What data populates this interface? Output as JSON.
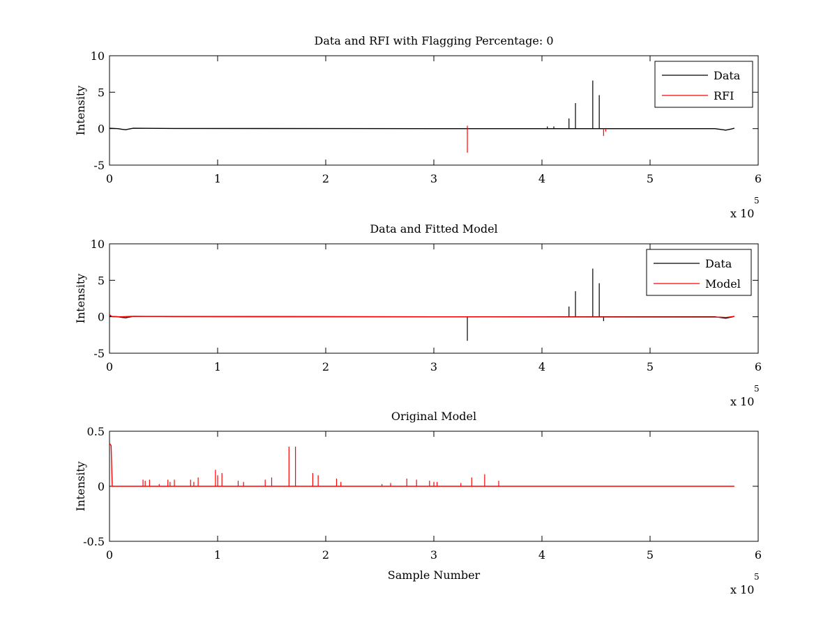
{
  "chart_data": [
    {
      "type": "line",
      "title": "Data and RFI with Flagging Percentage: 0",
      "xlabel": "",
      "ylabel": "Intensity",
      "xlim": [
        0,
        600000
      ],
      "ylim": [
        -5,
        10
      ],
      "xticks": [
        0,
        1,
        2,
        3,
        4,
        5,
        6
      ],
      "yticks": [
        -5,
        0,
        5,
        10
      ],
      "x_multiplier": "x 10",
      "x_multiplier_exp": "5",
      "legend": {
        "position": "top-right",
        "entries": [
          "Data",
          "RFI"
        ]
      },
      "series": [
        {
          "name": "Data",
          "color": "#000000",
          "baseline": [
            [
              0,
              0.05
            ],
            [
              8000,
              0.0
            ],
            [
              12000,
              -0.1
            ],
            [
              15000,
              -0.15
            ],
            [
              18000,
              -0.05
            ],
            [
              22000,
              0.05
            ],
            [
              60000,
              0.03
            ],
            [
              300000,
              0.0
            ],
            [
              560000,
              0.0
            ],
            [
              565000,
              -0.1
            ],
            [
              570000,
              -0.2
            ],
            [
              575000,
              -0.05
            ],
            [
              578000,
              0.05
            ]
          ],
          "spikes": [
            [
              425000,
              1.4
            ],
            [
              431000,
              3.5
            ],
            [
              447000,
              6.6
            ],
            [
              453000,
              4.6
            ],
            [
              405000,
              0.3
            ],
            [
              411000,
              0.3
            ]
          ]
        },
        {
          "name": "RFI",
          "color": "#ff0000",
          "spikes": [
            [
              331000,
              0.4
            ],
            [
              331000,
              -3.3
            ],
            [
              457000,
              -1.0
            ],
            [
              459000,
              -0.4
            ]
          ]
        }
      ]
    },
    {
      "type": "line",
      "title": "Data and Fitted Model",
      "xlabel": "",
      "ylabel": "Intensity",
      "xlim": [
        0,
        600000
      ],
      "ylim": [
        -5,
        10
      ],
      "xticks": [
        0,
        1,
        2,
        3,
        4,
        5,
        6
      ],
      "yticks": [
        -5,
        0,
        5,
        10
      ],
      "x_multiplier": "x 10",
      "x_multiplier_exp": "5",
      "legend": {
        "position": "top-right",
        "entries": [
          "Data",
          "Model"
        ]
      },
      "series": [
        {
          "name": "Data",
          "color": "#000000",
          "baseline": [
            [
              0,
              0.05
            ],
            [
              8000,
              0.0
            ],
            [
              12000,
              -0.1
            ],
            [
              15000,
              -0.15
            ],
            [
              18000,
              -0.05
            ],
            [
              22000,
              0.05
            ],
            [
              60000,
              0.03
            ],
            [
              300000,
              0.0
            ],
            [
              560000,
              0.0
            ],
            [
              565000,
              -0.1
            ],
            [
              570000,
              -0.2
            ],
            [
              575000,
              -0.05
            ],
            [
              578000,
              0.05
            ]
          ],
          "spikes": [
            [
              331000,
              -3.3
            ],
            [
              425000,
              1.4
            ],
            [
              431000,
              3.5
            ],
            [
              447000,
              6.6
            ],
            [
              453000,
              4.6
            ],
            [
              457000,
              -0.6
            ]
          ]
        },
        {
          "name": "Model",
          "color": "#ff0000",
          "baseline": [
            [
              0,
              0.3
            ],
            [
              2000,
              0.05
            ],
            [
              10000,
              0.0
            ],
            [
              20000,
              0.05
            ],
            [
              300000,
              0.0
            ],
            [
              565000,
              -0.05
            ],
            [
              570000,
              -0.1
            ],
            [
              578000,
              0.05
            ]
          ],
          "spikes": []
        }
      ]
    },
    {
      "type": "line",
      "title": "Original Model",
      "xlabel": "Sample Number",
      "ylabel": "Intensity",
      "xlim": [
        0,
        600000
      ],
      "ylim": [
        -0.5,
        0.5
      ],
      "xticks": [
        0,
        1,
        2,
        3,
        4,
        5,
        6
      ],
      "yticks": [
        -0.5,
        0,
        0.5
      ],
      "x_multiplier": "x 10",
      "x_multiplier_exp": "5",
      "legend": null,
      "series": [
        {
          "color": "#ff0000",
          "baseline": [
            [
              0,
              0.39
            ],
            [
              1500,
              0.37
            ],
            [
              2500,
              0.0
            ],
            [
              578000,
              0.0
            ]
          ],
          "spikes": [
            [
              31000,
              0.06
            ],
            [
              33000,
              0.05
            ],
            [
              37000,
              0.06
            ],
            [
              46000,
              0.02
            ],
            [
              54000,
              0.06
            ],
            [
              56000,
              0.04
            ],
            [
              60000,
              0.06
            ],
            [
              75000,
              0.06
            ],
            [
              78000,
              0.04
            ],
            [
              82000,
              0.08
            ],
            [
              98000,
              0.15
            ],
            [
              100000,
              0.1
            ],
            [
              104000,
              0.12
            ],
            [
              119000,
              0.05
            ],
            [
              124000,
              0.04
            ],
            [
              144000,
              0.06
            ],
            [
              150000,
              0.08
            ],
            [
              166000,
              0.36
            ],
            [
              172000,
              0.36
            ],
            [
              188000,
              0.12
            ],
            [
              193000,
              0.1
            ],
            [
              210000,
              0.07
            ],
            [
              214000,
              0.04
            ],
            [
              252000,
              0.02
            ],
            [
              260000,
              0.03
            ],
            [
              275000,
              0.07
            ],
            [
              284000,
              0.06
            ],
            [
              296000,
              0.05
            ],
            [
              300000,
              0.04
            ],
            [
              303000,
              0.04
            ],
            [
              325000,
              0.03
            ],
            [
              335000,
              0.08
            ],
            [
              347000,
              0.11
            ],
            [
              360000,
              0.05
            ]
          ]
        }
      ]
    }
  ]
}
